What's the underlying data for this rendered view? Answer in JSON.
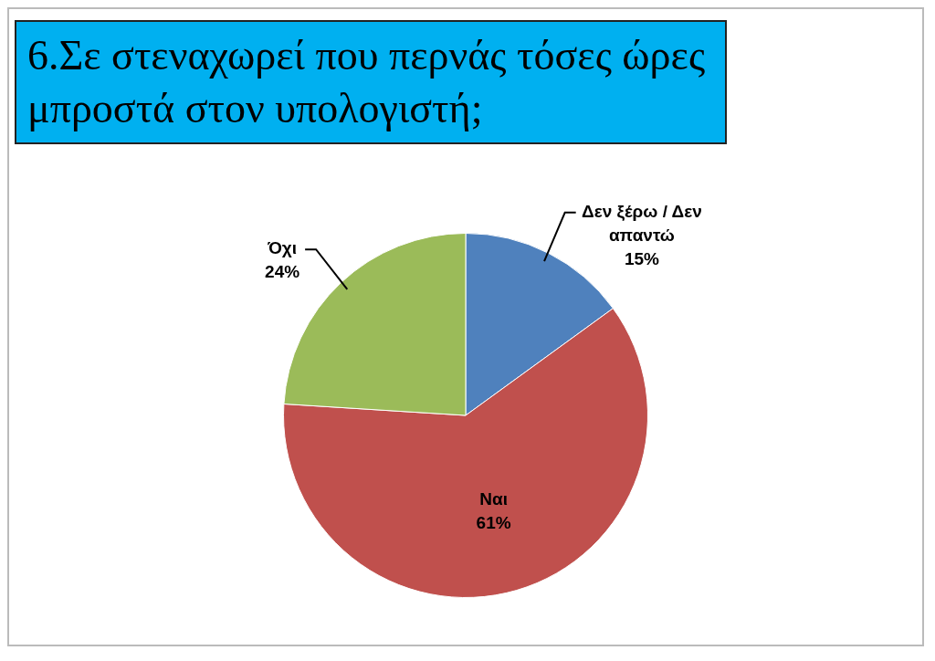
{
  "chart_data": {
    "type": "pie",
    "title": "6.Σε στεναχωρεί που περνάς τόσες ώρες μπροστά στον υπολογιστή;",
    "categories": [
      "Δεν ξέρω / Δεν απαντώ",
      "Ναι",
      "Όχι"
    ],
    "values": [
      15,
      61,
      24
    ],
    "colors": [
      "#4f81bd",
      "#c0504d",
      "#9bbb59"
    ],
    "value_labels": [
      "15%",
      "61%",
      "24%"
    ],
    "legend": false
  }
}
